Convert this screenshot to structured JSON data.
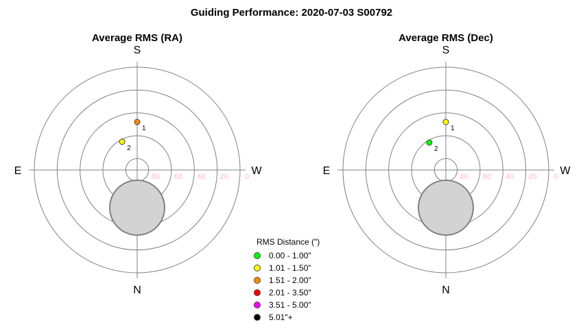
{
  "title": "Guiding Performance: 2020-07-03 S00792",
  "chart_data": [
    {
      "type": "scatter",
      "projection": "polar",
      "title": "Average RMS (RA)",
      "directions": {
        "top": "S",
        "bottom": "N",
        "left": "E",
        "right": "W"
      },
      "radial_axis": {
        "label_position": "east",
        "ticks": [
          "80",
          "60",
          "40",
          "20",
          "0"
        ],
        "tick_values": [
          80,
          60,
          40,
          20,
          0
        ],
        "range": [
          90,
          0
        ]
      },
      "gridlines": {
        "circle_altitudes": [
          80,
          60,
          40,
          20,
          0
        ],
        "crosshair": true
      },
      "blocked_region": {
        "center_azimuth": 0,
        "center_altitude": 57,
        "radius_altitude_units": 24,
        "color": "#d3d3d3"
      },
      "points": [
        {
          "label": "1",
          "azimuth": 180,
          "altitude": 48,
          "rms": 1.75,
          "color": "#ff8c00"
        },
        {
          "label": "2",
          "azimuth": 152,
          "altitude": 62,
          "rms": 1.3,
          "color": "#ffff00"
        }
      ]
    },
    {
      "type": "scatter",
      "projection": "polar",
      "title": "Average RMS (Dec)",
      "directions": {
        "top": "S",
        "bottom": "N",
        "left": "E",
        "right": "W"
      },
      "radial_axis": {
        "label_position": "east",
        "ticks": [
          "80",
          "60",
          "40",
          "20",
          "0"
        ],
        "tick_values": [
          80,
          60,
          40,
          20,
          0
        ],
        "range": [
          90,
          0
        ]
      },
      "gridlines": {
        "circle_altitudes": [
          80,
          60,
          40,
          20,
          0
        ],
        "crosshair": true
      },
      "blocked_region": {
        "center_azimuth": 0,
        "center_altitude": 57,
        "radius_altitude_units": 24,
        "color": "#d3d3d3"
      },
      "points": [
        {
          "label": "1",
          "azimuth": 180,
          "altitude": 48,
          "rms": 1.3,
          "color": "#ffff00"
        },
        {
          "label": "2",
          "azimuth": 149,
          "altitude": 62,
          "rms": 0.8,
          "color": "#00ff00"
        }
      ]
    }
  ],
  "legend": {
    "title": "RMS Distance (\")",
    "placement": "bottom-center",
    "items": [
      {
        "label": "0.00 - 1.00\"",
        "color": "#00ff00"
      },
      {
        "label": "1.01 - 1.50\"",
        "color": "#ffff00"
      },
      {
        "label": "1.51 - 2.00\"",
        "color": "#ff8c00"
      },
      {
        "label": "2.01 - 3.50\"",
        "color": "#ff0000"
      },
      {
        "label": "3.51 - 5.00\"",
        "color": "#ff00ff"
      },
      {
        "label": "5.01\"+",
        "color": "#000000"
      }
    ]
  }
}
